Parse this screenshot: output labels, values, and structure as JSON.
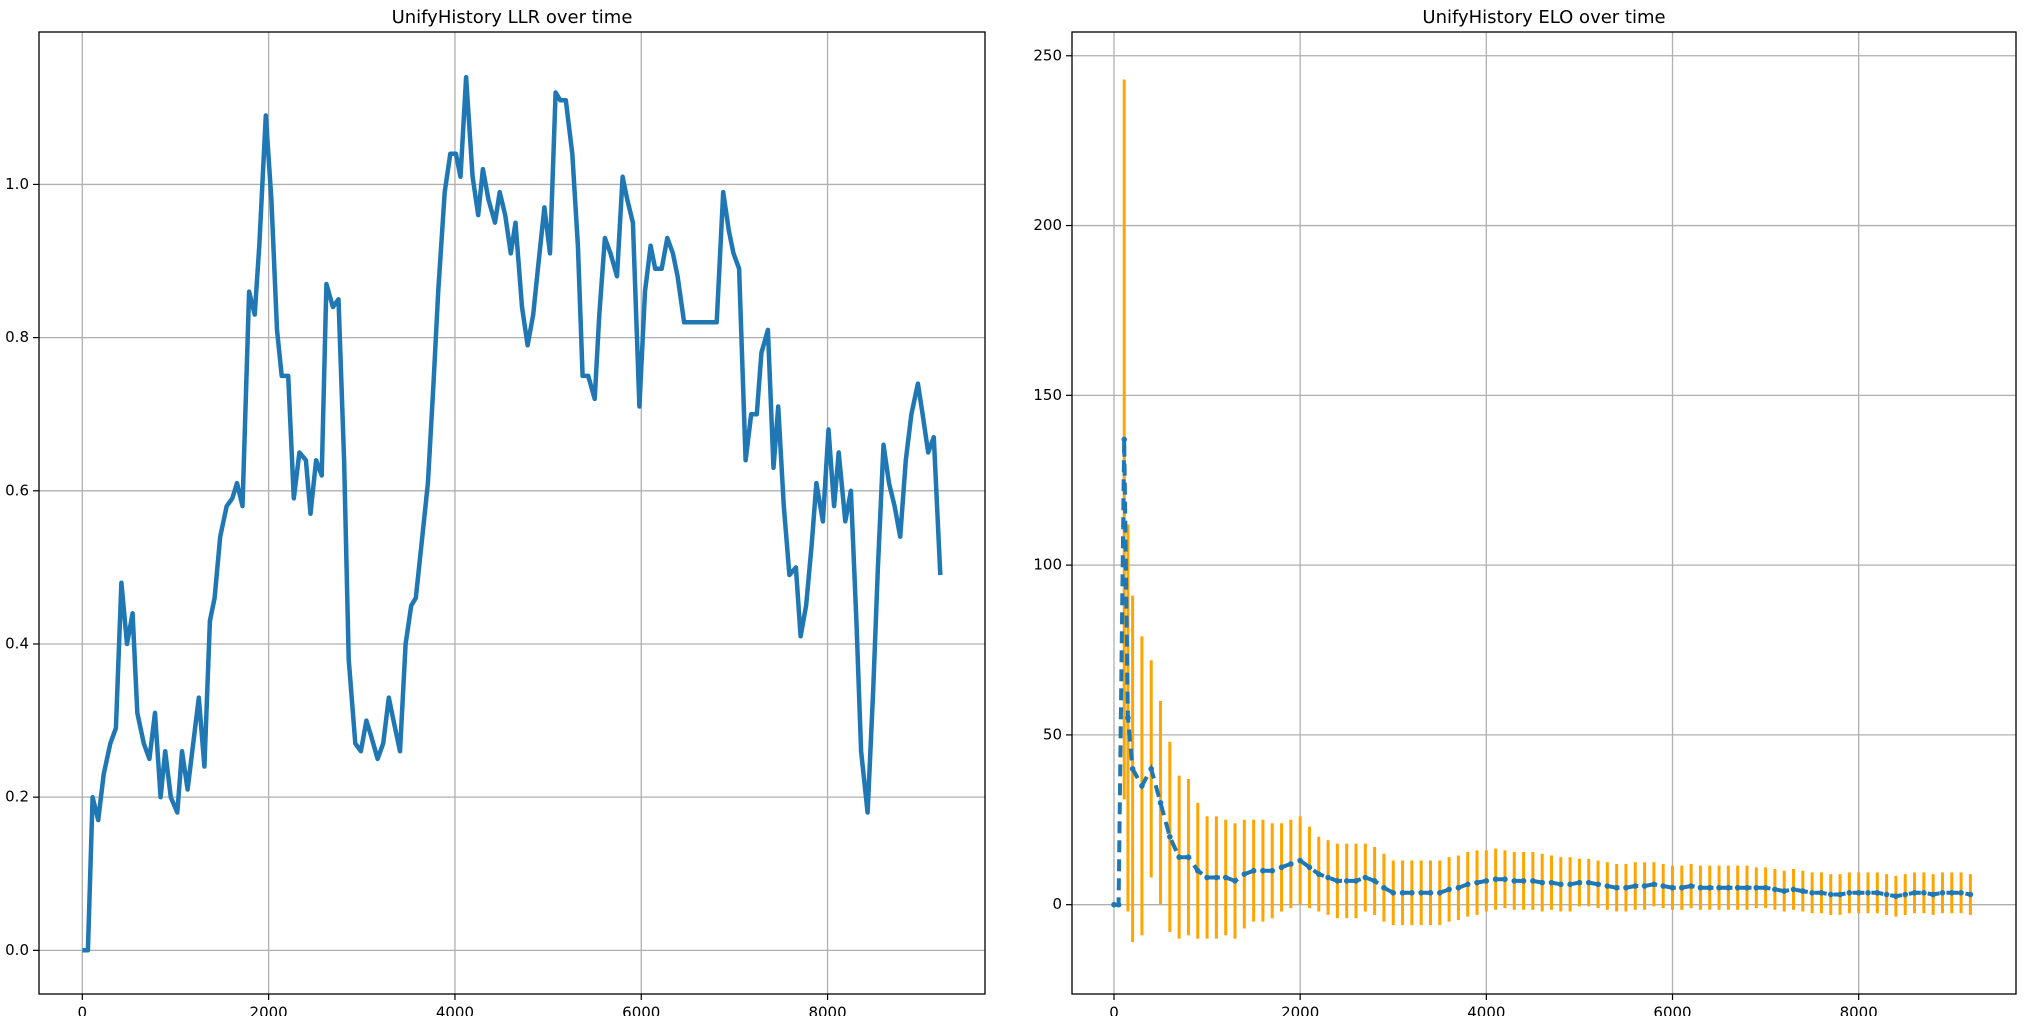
{
  "chart_data": [
    {
      "type": "line",
      "title": "UnifyHistory LLR over time",
      "color": "#1f77b4",
      "grid": true,
      "xlim": [
        -465,
        9690
      ],
      "ylim": [
        -0.057,
        1.199
      ],
      "xticks": [
        0,
        2000,
        4000,
        6000,
        8000
      ],
      "yticks": [
        {
          "value": 0,
          "label": "0.0"
        },
        0.2,
        0.4,
        0.6,
        0.8,
        {
          "value": 1,
          "label": "1.0"
        }
      ],
      "x": [
        0,
        60,
        110,
        170,
        230,
        300,
        360,
        420,
        480,
        540,
        590,
        660,
        720,
        780,
        840,
        890,
        950,
        1020,
        1070,
        1130,
        1190,
        1250,
        1310,
        1370,
        1420,
        1480,
        1550,
        1610,
        1660,
        1720,
        1790,
        1850,
        1900,
        1970,
        2030,
        2090,
        2140,
        2210,
        2270,
        2330,
        2400,
        2450,
        2510,
        2570,
        2620,
        2690,
        2750,
        2810,
        2860,
        2930,
        2990,
        3050,
        3100,
        3170,
        3230,
        3290,
        3340,
        3410,
        3470,
        3530,
        3580,
        3650,
        3710,
        3770,
        3820,
        3890,
        3950,
        4010,
        4060,
        4120,
        4190,
        4250,
        4300,
        4360,
        4430,
        4480,
        4540,
        4600,
        4650,
        4720,
        4780,
        4840,
        4890,
        4960,
        5020,
        5080,
        5130,
        5190,
        5260,
        5320,
        5370,
        5430,
        5500,
        5550,
        5610,
        5670,
        5740,
        5800,
        5850,
        5910,
        5980,
        6040,
        6100,
        6150,
        6220,
        6280,
        6340,
        6390,
        6460,
        6520,
        6810,
        6880,
        6940,
        6990,
        7050,
        7120,
        7180,
        7240,
        7290,
        7360,
        7420,
        7470,
        7530,
        7590,
        7660,
        7710,
        7770,
        7830,
        7880,
        7950,
        8010,
        8070,
        8120,
        8190,
        8250,
        8310,
        8360,
        8430,
        8490,
        8540,
        8600,
        8660,
        8720,
        8780,
        8840,
        8900,
        8970,
        9020,
        9080,
        9140,
        9210
      ],
      "values": [
        0,
        0,
        0.2,
        0.17,
        0.23,
        0.27,
        0.29,
        0.48,
        0.4,
        0.44,
        0.31,
        0.27,
        0.25,
        0.31,
        0.2,
        0.26,
        0.2,
        0.18,
        0.26,
        0.21,
        0.27,
        0.33,
        0.24,
        0.43,
        0.46,
        0.54,
        0.58,
        0.59,
        0.61,
        0.58,
        0.86,
        0.83,
        0.92,
        1.09,
        0.98,
        0.81,
        0.75,
        0.75,
        0.59,
        0.65,
        0.64,
        0.57,
        0.64,
        0.62,
        0.87,
        0.84,
        0.85,
        0.64,
        0.38,
        0.27,
        0.26,
        0.3,
        0.28,
        0.25,
        0.27,
        0.33,
        0.3,
        0.26,
        0.4,
        0.45,
        0.46,
        0.54,
        0.61,
        0.74,
        0.86,
        0.99,
        1.04,
        1.04,
        1.01,
        1.14,
        1.01,
        0.96,
        1.02,
        0.98,
        0.95,
        0.99,
        0.96,
        0.91,
        0.95,
        0.84,
        0.79,
        0.83,
        0.89,
        0.97,
        0.91,
        1.12,
        1.11,
        1.11,
        1.04,
        0.92,
        0.75,
        0.75,
        0.72,
        0.83,
        0.93,
        0.91,
        0.88,
        1.01,
        0.98,
        0.95,
        0.71,
        0.86,
        0.92,
        0.89,
        0.89,
        0.93,
        0.91,
        0.88,
        0.82,
        0.82,
        0.82,
        0.99,
        0.94,
        0.91,
        0.89,
        0.64,
        0.7,
        0.7,
        0.78,
        0.81,
        0.63,
        0.71,
        0.58,
        0.49,
        0.5,
        0.41,
        0.45,
        0.53,
        0.61,
        0.56,
        0.68,
        0.58,
        0.65,
        0.56,
        0.6,
        0.43,
        0.26,
        0.18,
        0.34,
        0.5,
        0.66,
        0.61,
        0.58,
        0.54,
        0.64,
        0.7,
        0.74,
        0.7,
        0.65,
        0.67,
        0.49
      ]
    },
    {
      "type": "errorbar",
      "title": "UnifyHistory ELO over time",
      "color": "#1f77b4",
      "error_color": "#ffa500",
      "grid": true,
      "xlim": [
        -451,
        9690
      ],
      "ylim": [
        -26.3,
        257
      ],
      "xticks": [
        0,
        2000,
        4000,
        6000,
        8000
      ],
      "yticks": [
        0,
        50,
        100,
        150,
        200,
        250
      ],
      "x": [
        0,
        50,
        110,
        150,
        200,
        300,
        400,
        500,
        600,
        700,
        800,
        900,
        1000,
        1100,
        1200,
        1300,
        1400,
        1500,
        1600,
        1700,
        1800,
        1900,
        2000,
        2100,
        2200,
        2300,
        2400,
        2500,
        2600,
        2700,
        2800,
        2900,
        3000,
        3100,
        3200,
        3300,
        3400,
        3500,
        3600,
        3700,
        3800,
        3900,
        4000,
        4100,
        4200,
        4300,
        4400,
        4500,
        4600,
        4700,
        4800,
        4900,
        5000,
        5100,
        5200,
        5300,
        5400,
        5500,
        5600,
        5700,
        5800,
        5900,
        6000,
        6100,
        6200,
        6300,
        6400,
        6500,
        6600,
        6700,
        6800,
        6900,
        7000,
        7100,
        7200,
        7300,
        7400,
        7500,
        7600,
        7700,
        7800,
        7900,
        8000,
        8100,
        8200,
        8300,
        8400,
        8500,
        8600,
        8700,
        8800,
        8900,
        9000,
        9100,
        9200
      ],
      "values": [
        0,
        0,
        137,
        55,
        40,
        35,
        40,
        30,
        20,
        14,
        14,
        10,
        8,
        8,
        8,
        7,
        9,
        10,
        10,
        10,
        11,
        12,
        13,
        11,
        9,
        8,
        7,
        7,
        7,
        8,
        7,
        5,
        3.5,
        3.5,
        3.5,
        3.5,
        3.5,
        3.5,
        4.5,
        5,
        6,
        6.5,
        7,
        7.5,
        7.5,
        7,
        7,
        7,
        6.5,
        6.5,
        6,
        6,
        6.5,
        6.5,
        6,
        5.5,
        5,
        5,
        5.5,
        5.5,
        6,
        5.5,
        5,
        5,
        5.5,
        5,
        5,
        5,
        5,
        5,
        5,
        5,
        5,
        4.5,
        4,
        4.5,
        4,
        3.5,
        3.5,
        3,
        3,
        3.5,
        3.5,
        3.5,
        3.5,
        3,
        2.5,
        3,
        3.5,
        3.5,
        3,
        3.5,
        3.5,
        3.5,
        3
      ],
      "errors": [
        0,
        0,
        106,
        57,
        51,
        44,
        32,
        30,
        28,
        24,
        23,
        20,
        18,
        18,
        17,
        17,
        16,
        15,
        15,
        14,
        13,
        13,
        13,
        12,
        11,
        11,
        11,
        11,
        11,
        10,
        10,
        10,
        9.5,
        9.5,
        9.5,
        9.5,
        9.5,
        9.5,
        9.5,
        9.5,
        9.5,
        9.5,
        9,
        9,
        8.5,
        8.5,
        8.5,
        8.5,
        8.5,
        8,
        8,
        8,
        7,
        7,
        7,
        7,
        7,
        7,
        7,
        7,
        6.5,
        6.5,
        6.5,
        6.5,
        6.5,
        6.5,
        6.5,
        6.5,
        6.5,
        6.5,
        6.5,
        6,
        6,
        6,
        6,
        6,
        6,
        6,
        6,
        6,
        6,
        6,
        6,
        6,
        6,
        6,
        6,
        6,
        6,
        6,
        6,
        6,
        6,
        6,
        6
      ]
    }
  ]
}
